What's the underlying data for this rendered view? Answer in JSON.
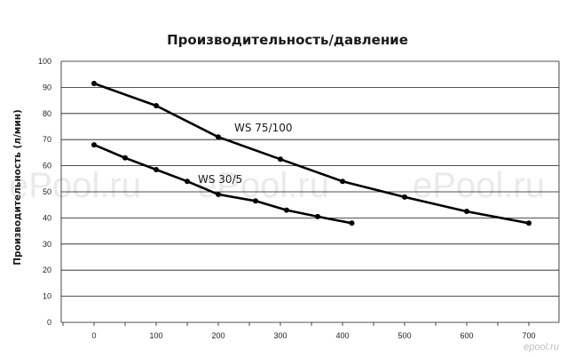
{
  "chart_data": {
    "type": "line",
    "title": "Производительность/давление",
    "xlabel": "",
    "ylabel": "Производительность (л/мин)",
    "xlim": [
      0,
      700
    ],
    "ylim": [
      0,
      100
    ],
    "x_ticks": [
      0,
      100,
      200,
      300,
      400,
      500,
      600,
      700
    ],
    "y_ticks": [
      0,
      10,
      20,
      30,
      40,
      50,
      60,
      70,
      80,
      90,
      100
    ],
    "grid": true,
    "legend": "none",
    "line_color": "#000000",
    "series": [
      {
        "name": "WS 75/100",
        "points": [
          [
            0,
            91.5
          ],
          [
            100,
            83
          ],
          [
            200,
            71
          ],
          [
            300,
            62.5
          ],
          [
            400,
            54
          ],
          [
            500,
            48
          ],
          [
            600,
            42.5
          ],
          [
            700,
            38
          ]
        ]
      },
      {
        "name": "WS 30/5",
        "points": [
          [
            0,
            68
          ],
          [
            50,
            63
          ],
          [
            100,
            58.5
          ],
          [
            150,
            54
          ],
          [
            200,
            49
          ],
          [
            260,
            46.5
          ],
          [
            310,
            43
          ],
          [
            360,
            40.5
          ],
          [
            415,
            38
          ]
        ]
      }
    ]
  },
  "watermark": {
    "text": "ePool.ru"
  },
  "corner_mark": {
    "text": "epool.ru"
  }
}
